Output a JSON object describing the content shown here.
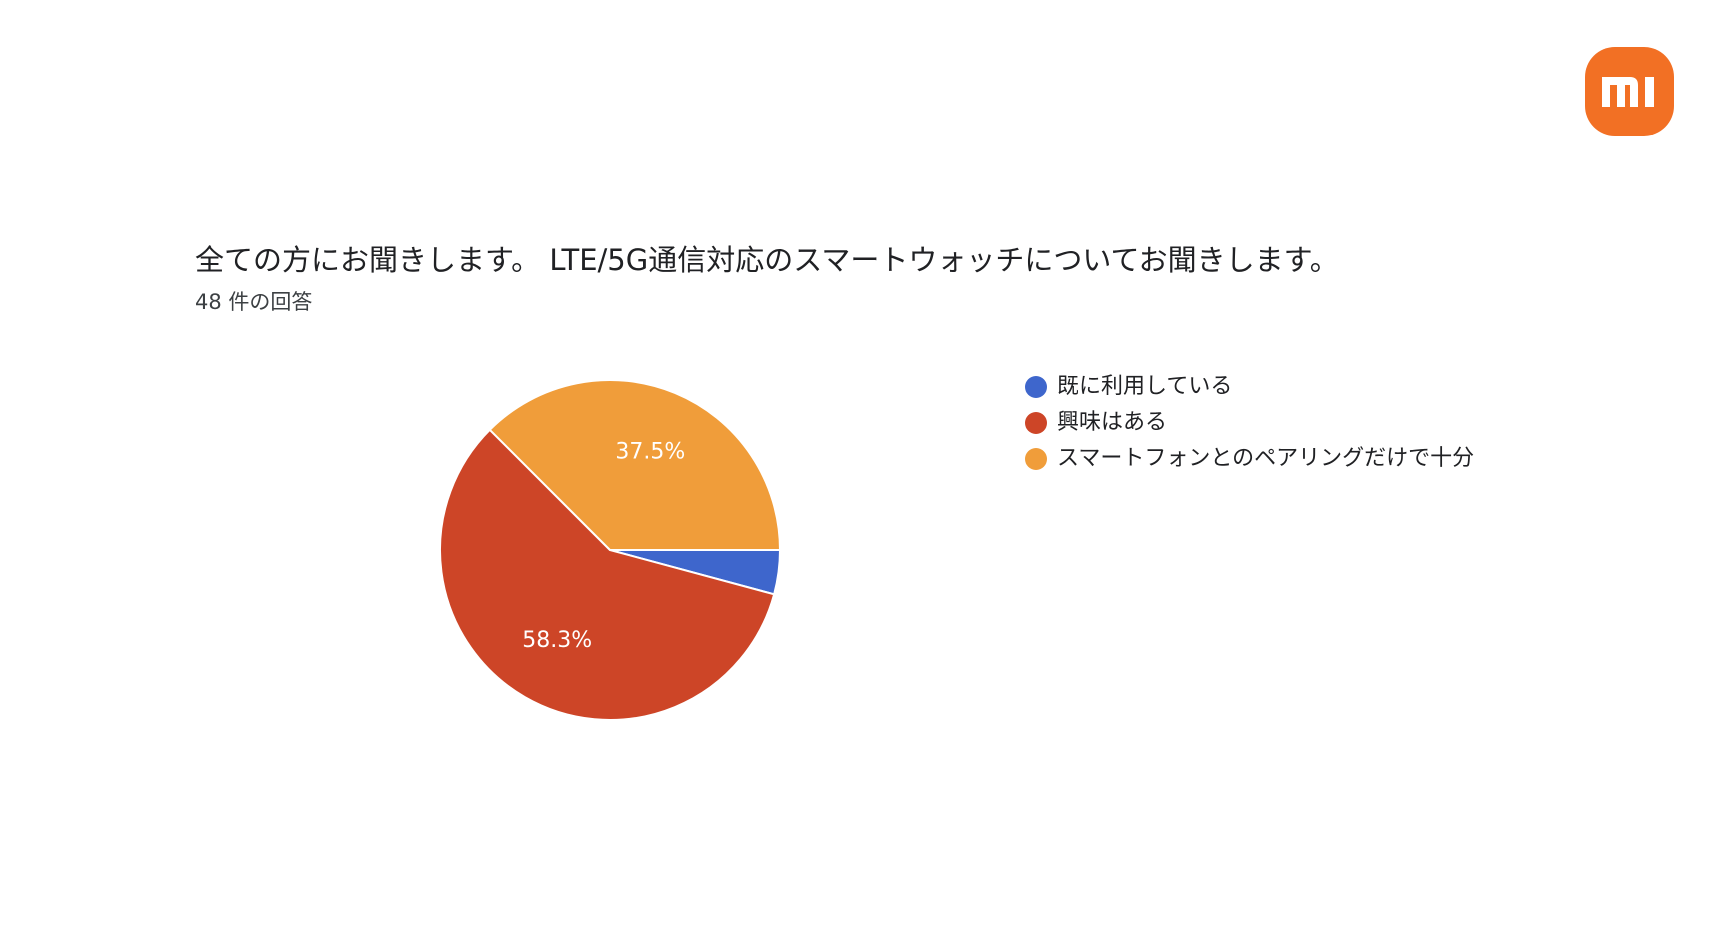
{
  "brand": {
    "logo_text": "mi",
    "logo_color": "#f27024"
  },
  "header": {
    "title": "全ての方にお聞きします。 LTE/5G通信対応のスマートウォッチについてお聞きします。",
    "response_count": "48 件の回答"
  },
  "chart_data": {
    "type": "pie",
    "title": "全ての方にお聞きします。 LTE/5G通信対応のスマートウォッチについてお聞きします。",
    "start_angle_deg": 90,
    "direction": "clockwise",
    "legend_position": "right",
    "slices": [
      {
        "label": "既に利用している",
        "value": 4.2,
        "display": "",
        "color": "#3e66cc"
      },
      {
        "label": "興味はある",
        "value": 58.3,
        "display": "58.3%",
        "color": "#cd4527"
      },
      {
        "label": "スマートフォンとのペアリングだけで十分",
        "value": 37.5,
        "display": "37.5%",
        "color": "#f09d3a"
      }
    ]
  }
}
